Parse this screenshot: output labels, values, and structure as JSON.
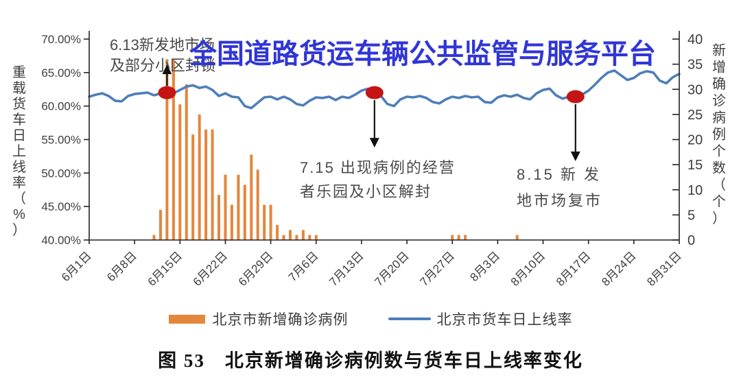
{
  "watermark": {
    "text": "全国道路货运车辆公共监管与服务平台",
    "color": "#3036D6"
  },
  "legend": {
    "items": [
      {
        "label": "北京市新增确诊病例",
        "type": "bar",
        "color": "#E4863C"
      },
      {
        "label": "北京市货车日上线率",
        "type": "line",
        "color": "#4E7EBB"
      }
    ]
  },
  "caption": {
    "text": "图 53　北京新增确诊病例数与货车日上线率变化"
  },
  "chart_data": {
    "type": "combo",
    "x_tick_labels": [
      "6月1日",
      "6月8日",
      "6月15日",
      "6月22日",
      "6月29日",
      "7月6日",
      "7月13日",
      "7月20日",
      "7月27日",
      "8月3日",
      "8月10日",
      "8月17日",
      "8月24日",
      "8月31日"
    ],
    "left_axis": {
      "label": "重载货车日上线率（%）",
      "min": 40,
      "max": 70,
      "ticks": [
        {
          "value": 70,
          "label": "70.00%"
        },
        {
          "value": 65,
          "label": "65.00%"
        },
        {
          "value": 60,
          "label": "60.00%"
        },
        {
          "value": 55,
          "label": "55.00%"
        },
        {
          "value": 50,
          "label": "50.00%"
        },
        {
          "value": 45,
          "label": "45.00%"
        },
        {
          "value": 40,
          "label": "40.00%"
        }
      ]
    },
    "right_axis": {
      "label": "新增确诊病例个数（个）",
      "min": 0,
      "max": 40,
      "ticks": [
        40,
        35,
        30,
        25,
        20,
        15,
        10,
        5,
        0
      ]
    },
    "bars": {
      "name": "北京市新增确诊病例",
      "axis": "right",
      "color": "#E4863C",
      "points": [
        {
          "date": "6月11日",
          "day": 10,
          "value": 1
        },
        {
          "date": "6月12日",
          "day": 11,
          "value": 6
        },
        {
          "date": "6月13日",
          "day": 12,
          "value": 36
        },
        {
          "date": "6月14日",
          "day": 13,
          "value": 36
        },
        {
          "date": "6月15日",
          "day": 14,
          "value": 27
        },
        {
          "date": "6月16日",
          "day": 15,
          "value": 31
        },
        {
          "date": "6月17日",
          "day": 16,
          "value": 21
        },
        {
          "date": "6月18日",
          "day": 17,
          "value": 25
        },
        {
          "date": "6月19日",
          "day": 18,
          "value": 22
        },
        {
          "date": "6月20日",
          "day": 19,
          "value": 22
        },
        {
          "date": "6月21日",
          "day": 20,
          "value": 9
        },
        {
          "date": "6月22日",
          "day": 21,
          "value": 13
        },
        {
          "date": "6月23日",
          "day": 22,
          "value": 7
        },
        {
          "date": "6月24日",
          "day": 23,
          "value": 13
        },
        {
          "date": "6月25日",
          "day": 24,
          "value": 11
        },
        {
          "date": "6月26日",
          "day": 25,
          "value": 17
        },
        {
          "date": "6月27日",
          "day": 26,
          "value": 14
        },
        {
          "date": "6月28日",
          "day": 27,
          "value": 7
        },
        {
          "date": "6月29日",
          "day": 28,
          "value": 7
        },
        {
          "date": "6月30日",
          "day": 29,
          "value": 3
        },
        {
          "date": "7月1日",
          "day": 30,
          "value": 1
        },
        {
          "date": "7月2日",
          "day": 31,
          "value": 2
        },
        {
          "date": "7月3日",
          "day": 32,
          "value": 1
        },
        {
          "date": "7月4日",
          "day": 33,
          "value": 2
        },
        {
          "date": "7月5日",
          "day": 34,
          "value": 1
        },
        {
          "date": "7月6日",
          "day": 35,
          "value": 1
        },
        {
          "date": "7月27日",
          "day": 56,
          "value": 1
        },
        {
          "date": "7月28日",
          "day": 57,
          "value": 1
        },
        {
          "date": "7月29日",
          "day": 58,
          "value": 1
        },
        {
          "date": "8月6日",
          "day": 66,
          "value": 1
        }
      ]
    },
    "line": {
      "name": "北京市货车日上线率",
      "axis": "left",
      "color": "#4E7EBB",
      "start_date": "6月1日",
      "unit": "%",
      "values": [
        61.4,
        61.7,
        61.9,
        61.5,
        60.8,
        60.7,
        61.5,
        61.8,
        61.9,
        62.0,
        61.6,
        61.9,
        62.0,
        61.9,
        62.4,
        62.9,
        63.1,
        62.7,
        62.9,
        62.4,
        61.5,
        61.9,
        61.4,
        61.3,
        60.0,
        59.7,
        60.5,
        61.3,
        61.4,
        61.0,
        61.4,
        61.0,
        60.3,
        60.1,
        60.8,
        61.3,
        61.2,
        61.4,
        60.9,
        61.4,
        61.2,
        61.7,
        62.3,
        62.6,
        62.0,
        61.5,
        60.3,
        60.0,
        61.0,
        61.4,
        61.3,
        61.5,
        61.2,
        60.6,
        60.4,
        61.0,
        61.4,
        61.2,
        61.5,
        61.3,
        61.4,
        60.6,
        60.5,
        61.3,
        61.6,
        61.4,
        61.7,
        61.2,
        61.0,
        61.9,
        62.4,
        62.6,
        61.6,
        61.1,
        61.4,
        61.4,
        61.7,
        62.3,
        63.2,
        64.2,
        65.0,
        65.3,
        64.6,
        63.9,
        64.2,
        64.9,
        65.2,
        65.0,
        63.8,
        63.4,
        64.3,
        64.8
      ]
    },
    "marker_color": "#C51414",
    "annotations": [
      {
        "id": "lockdown",
        "lines": [
          "6.13新发地市场",
          "及部分小区封锁"
        ],
        "marker_date": "6月13日",
        "marker_day": 12,
        "arrow": "up"
      },
      {
        "id": "reopen",
        "lines": [
          "7.15 出现病例的经营",
          "者乐园及小区解封"
        ],
        "marker_date": "7月15日",
        "marker_day": 44,
        "arrow": "down"
      },
      {
        "id": "market",
        "lines": [
          "8.15  新 发",
          "地市场复市"
        ],
        "marker_date": "8月15日",
        "marker_day": 75,
        "arrow": "down"
      }
    ]
  }
}
